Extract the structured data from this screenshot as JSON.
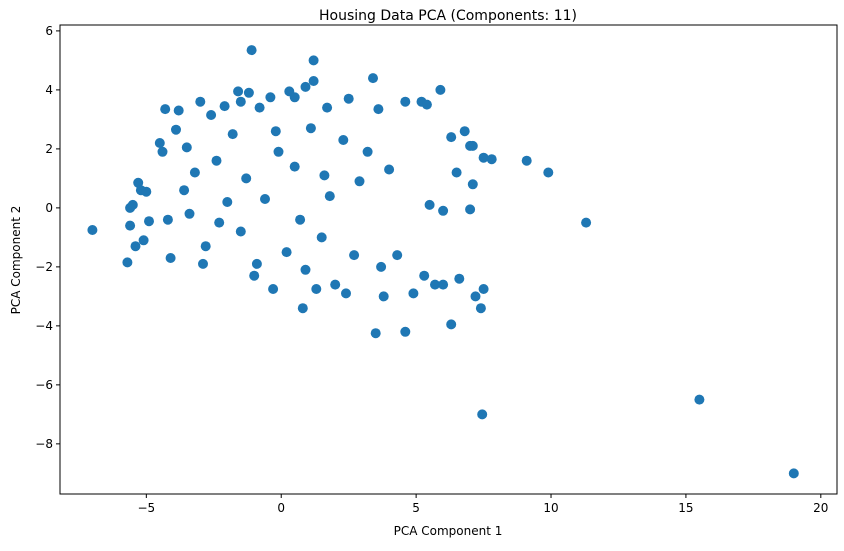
{
  "chart_data": {
    "type": "scatter",
    "title": "Housing Data PCA (Components: 11)",
    "xlabel": "PCA Component 1",
    "ylabel": "PCA Component 2",
    "xlim": [
      -8.2,
      20.6
    ],
    "ylim": [
      -9.7,
      6.2
    ],
    "xticks": [
      -5,
      0,
      5,
      10,
      15,
      20
    ],
    "yticks": [
      -8,
      -6,
      -4,
      -2,
      0,
      2,
      4,
      6
    ],
    "xtick_labels": [
      "−5",
      "0",
      "5",
      "10",
      "15",
      "20"
    ],
    "ytick_labels": [
      "−8",
      "−6",
      "−4",
      "−2",
      "0",
      "2",
      "4",
      "6"
    ],
    "grid": false,
    "legend": "none",
    "marker_color": "#1f77b4",
    "series": [
      {
        "points": [
          [
            -7.0,
            -0.75
          ],
          [
            -5.7,
            -1.85
          ],
          [
            -5.6,
            0.0
          ],
          [
            -5.5,
            0.1
          ],
          [
            -5.3,
            0.85
          ],
          [
            -5.2,
            0.6
          ],
          [
            -5.0,
            0.55
          ],
          [
            -5.6,
            -0.6
          ],
          [
            -5.4,
            -1.3
          ],
          [
            -5.1,
            -1.1
          ],
          [
            -4.9,
            -0.45
          ],
          [
            -4.5,
            2.2
          ],
          [
            -4.4,
            1.9
          ],
          [
            -4.3,
            3.35
          ],
          [
            -3.8,
            3.3
          ],
          [
            -3.9,
            2.65
          ],
          [
            -3.5,
            2.05
          ],
          [
            -3.0,
            3.6
          ],
          [
            -2.6,
            3.15
          ],
          [
            -2.1,
            3.45
          ],
          [
            -1.6,
            3.95
          ],
          [
            -1.5,
            3.6
          ],
          [
            -1.2,
            3.9
          ],
          [
            -1.1,
            5.35
          ],
          [
            -0.8,
            3.4
          ],
          [
            -0.4,
            3.75
          ],
          [
            0.3,
            3.95
          ],
          [
            0.5,
            3.75
          ],
          [
            0.9,
            4.1
          ],
          [
            1.2,
            4.3
          ],
          [
            1.2,
            5.0
          ],
          [
            1.7,
            3.4
          ],
          [
            2.5,
            3.7
          ],
          [
            3.4,
            4.4
          ],
          [
            3.6,
            3.35
          ],
          [
            4.6,
            3.6
          ],
          [
            5.2,
            3.6
          ],
          [
            5.4,
            3.5
          ],
          [
            5.9,
            4.0
          ],
          [
            6.3,
            2.4
          ],
          [
            6.8,
            2.6
          ],
          [
            7.0,
            2.1
          ],
          [
            7.1,
            2.1
          ],
          [
            7.5,
            1.7
          ],
          [
            7.8,
            1.65
          ],
          [
            9.1,
            1.6
          ],
          [
            9.9,
            1.2
          ],
          [
            11.3,
            -0.5
          ],
          [
            7.1,
            0.8
          ],
          [
            6.5,
            1.2
          ],
          [
            7.0,
            -0.05
          ],
          [
            6.0,
            -0.1
          ],
          [
            5.5,
            0.1
          ],
          [
            6.6,
            -2.4
          ],
          [
            7.2,
            -3.0
          ],
          [
            7.4,
            -3.4
          ],
          [
            7.5,
            -2.75
          ],
          [
            6.3,
            -3.95
          ],
          [
            3.5,
            -4.25
          ],
          [
            4.6,
            -4.2
          ],
          [
            7.45,
            -7.0
          ],
          [
            15.5,
            -6.5
          ],
          [
            19.0,
            -9.0
          ],
          [
            0.8,
            -3.4
          ],
          [
            -0.3,
            -2.75
          ],
          [
            1.3,
            -2.75
          ],
          [
            2.4,
            -2.9
          ],
          [
            3.8,
            -3.0
          ],
          [
            -1.0,
            -2.3
          ],
          [
            -4.1,
            -1.7
          ],
          [
            -2.9,
            -1.9
          ],
          [
            2.0,
            -2.6
          ],
          [
            4.9,
            -2.9
          ],
          [
            5.7,
            -2.6
          ],
          [
            5.3,
            -2.3
          ],
          [
            6.0,
            -2.6
          ],
          [
            -1.8,
            2.5
          ],
          [
            -0.2,
            2.6
          ],
          [
            -2.4,
            1.6
          ],
          [
            -3.2,
            1.2
          ],
          [
            -1.3,
            1.0
          ],
          [
            0.5,
            1.4
          ],
          [
            1.6,
            1.1
          ],
          [
            2.9,
            0.9
          ],
          [
            -0.6,
            0.3
          ],
          [
            -2.0,
            0.2
          ],
          [
            -3.4,
            -0.2
          ],
          [
            0.7,
            -0.4
          ],
          [
            1.8,
            0.4
          ],
          [
            -1.5,
            -0.8
          ],
          [
            -2.8,
            -1.3
          ],
          [
            0.2,
            -1.5
          ],
          [
            1.5,
            -1.0
          ],
          [
            2.7,
            -1.6
          ],
          [
            3.7,
            -2.0
          ],
          [
            4.3,
            -1.6
          ],
          [
            -0.9,
            -1.9
          ],
          [
            0.9,
            -2.1
          ],
          [
            -3.6,
            0.6
          ],
          [
            -2.3,
            -0.5
          ],
          [
            3.2,
            1.9
          ],
          [
            4.0,
            1.3
          ],
          [
            2.3,
            2.3
          ],
          [
            -4.2,
            -0.4
          ],
          [
            -0.1,
            1.9
          ],
          [
            1.1,
            2.7
          ]
        ]
      }
    ]
  }
}
